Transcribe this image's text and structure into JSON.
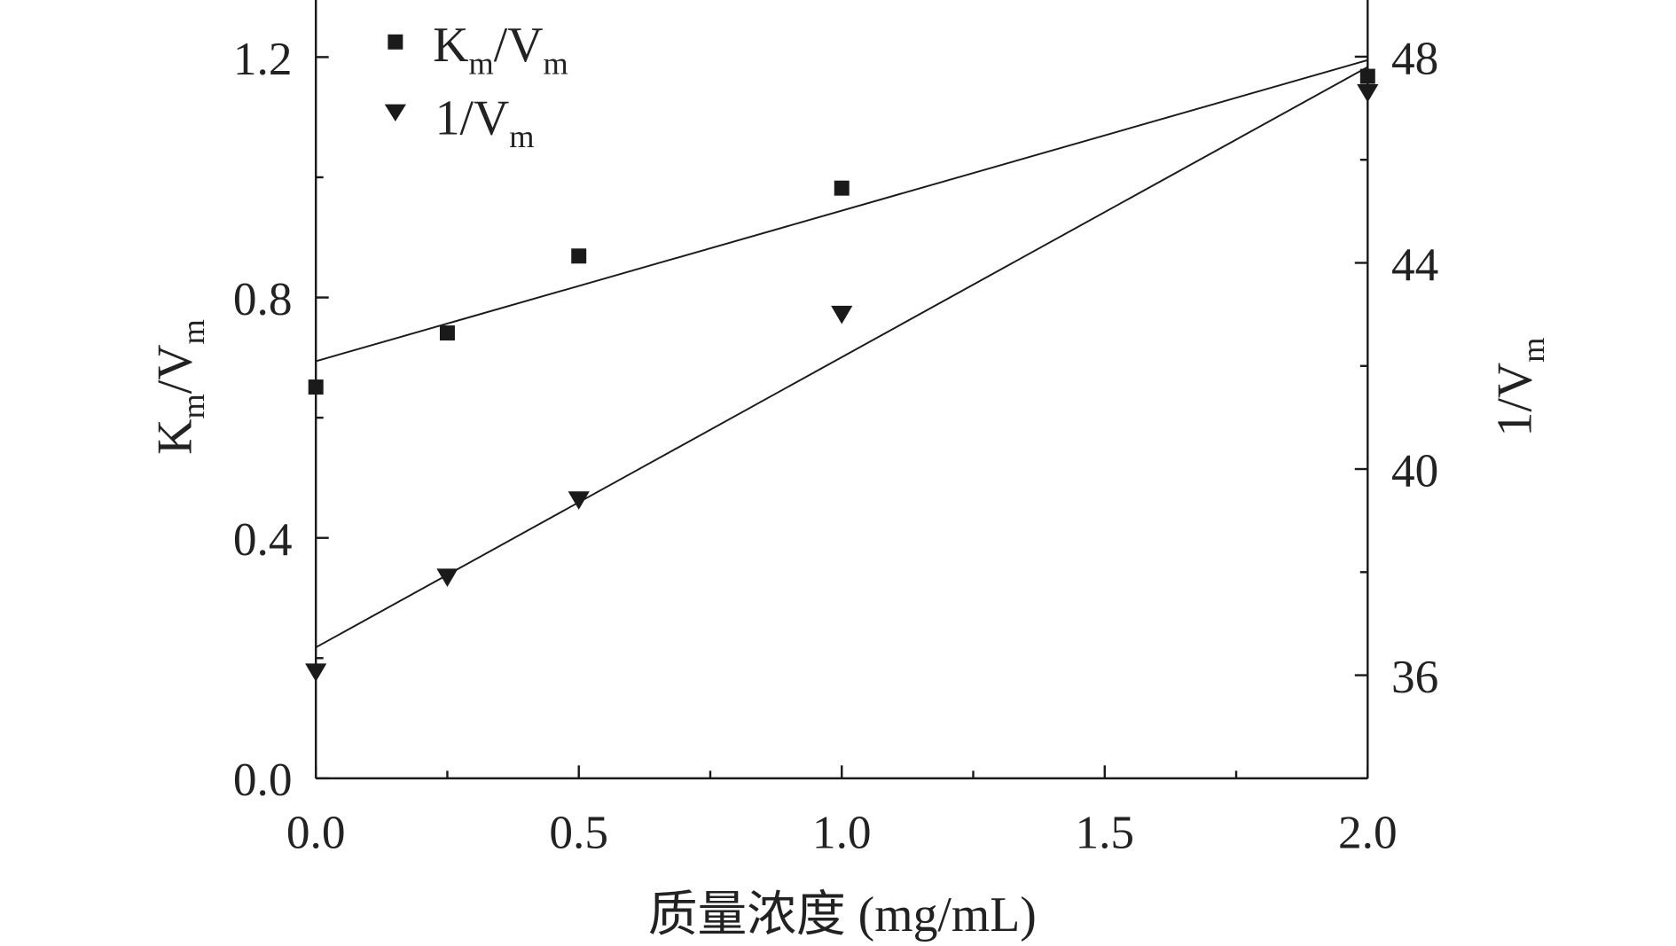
{
  "chart_data": {
    "type": "scatter",
    "title": "",
    "xlabel": "质量浓度 (mg/mL)",
    "ylabel_left": {
      "main": "K",
      "sub1": "m",
      "mid": "/V",
      "sub2": "m"
    },
    "ylabel_right": {
      "main": "1/V",
      "sub": "m"
    },
    "xlim": [
      0,
      2.0
    ],
    "ylim_left": [
      0,
      1.295
    ],
    "ylim_right": [
      34,
      49.1
    ],
    "x_ticks": [
      "0.0",
      "0.5",
      "1.0",
      "1.5",
      "2.0"
    ],
    "y_left_ticks": [
      "0.0",
      "0.4",
      "0.8",
      "1.2"
    ],
    "y_right_ticks": [
      "36",
      "40",
      "44",
      "48"
    ],
    "legend_position": "top-left",
    "series": [
      {
        "name": "Km/Vm",
        "legend": {
          "main": "K",
          "sub1": "m",
          "mid": "/V",
          "sub2": "m"
        },
        "axis": "left",
        "marker": "square",
        "x": [
          0,
          0.25,
          0.5,
          1.0,
          2.0
        ],
        "y": [
          0.651,
          0.741,
          0.869,
          0.982,
          1.168
        ],
        "fit": {
          "x": [
            0,
            2.0
          ],
          "y": [
            0.694,
            1.195
          ]
        }
      },
      {
        "name": "1/Vm",
        "legend": {
          "main": "1/V",
          "sub": "m"
        },
        "axis": "right",
        "marker": "triangle-down",
        "x": [
          0,
          0.25,
          0.5,
          1.0,
          2.0
        ],
        "y": [
          36.06,
          37.9,
          39.4,
          43.0,
          47.3
        ],
        "fit": {
          "x": [
            0,
            2.0
          ],
          "y": [
            36.54,
            47.8
          ]
        }
      }
    ],
    "colors": {
      "ink": "#1a1a1a"
    }
  }
}
